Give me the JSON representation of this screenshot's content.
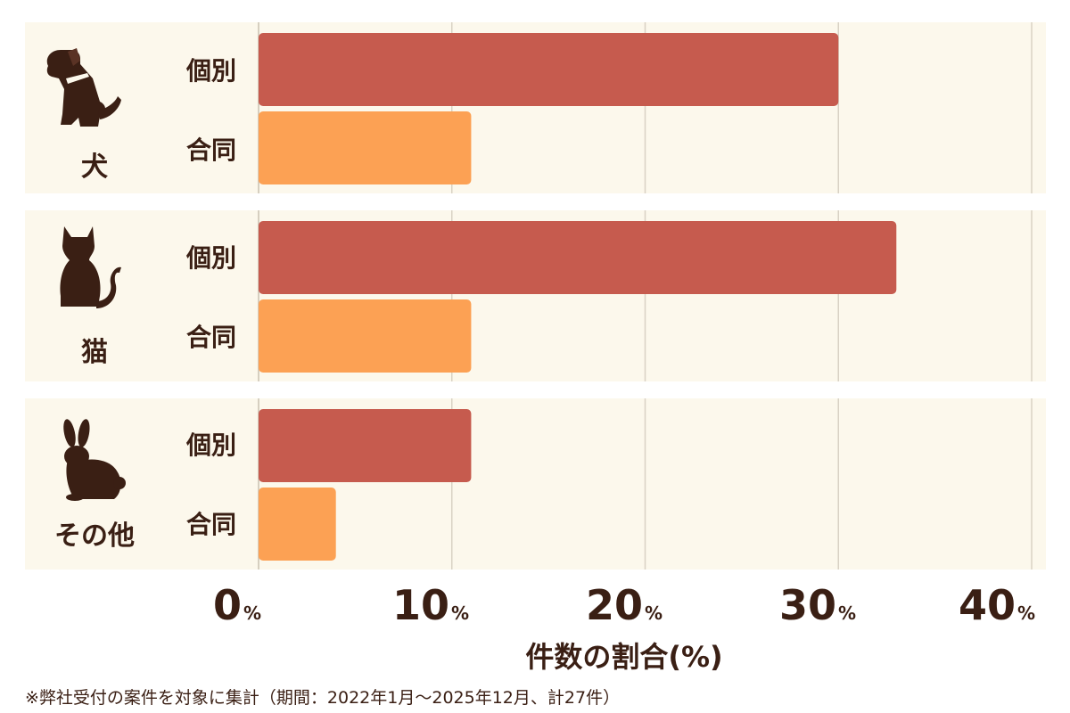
{
  "colors": {
    "individual": "#c65b4e",
    "joint": "#fca154",
    "panel": "#fcf8ec",
    "text": "#3a1f14",
    "grid": "#d9d2c4"
  },
  "groups": [
    {
      "name": "犬",
      "icon": "dog-icon"
    },
    {
      "name": "猫",
      "icon": "cat-icon"
    },
    {
      "name": "その他",
      "icon": "rabbit-icon"
    }
  ],
  "bar_labels": [
    "個別",
    "合同"
  ],
  "x_axis": {
    "ticks": [
      {
        "num": "0",
        "unit": "%"
      },
      {
        "num": "10",
        "unit": "%"
      },
      {
        "num": "20",
        "unit": "%"
      },
      {
        "num": "30",
        "unit": "%"
      },
      {
        "num": "40",
        "unit": "%"
      }
    ],
    "title": "件数の割合(%)"
  },
  "footnote": "※弊社受付の案件を対象に集計（期間：2022年1月～2025年12月、計27件）",
  "chart_data": {
    "type": "bar",
    "orientation": "horizontal",
    "categories": [
      "犬",
      "猫",
      "その他"
    ],
    "series": [
      {
        "name": "個別",
        "values": [
          30,
          33,
          11
        ]
      },
      {
        "name": "合同",
        "values": [
          11,
          11,
          4
        ]
      }
    ],
    "xlabel": "件数の割合(%)",
    "xlim": [
      0,
      40
    ],
    "grid": true
  }
}
